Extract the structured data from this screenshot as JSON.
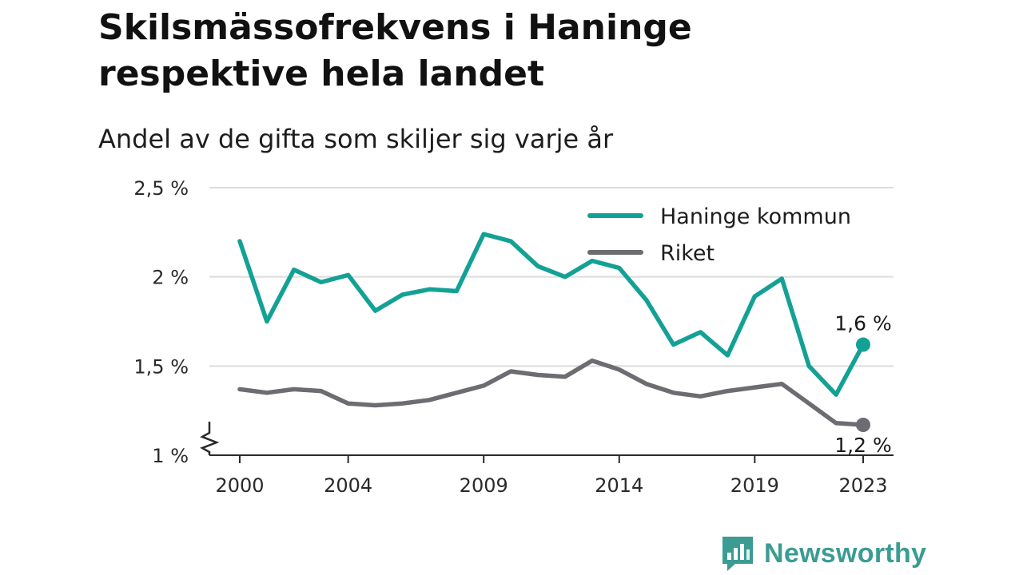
{
  "header": {
    "title": "Skilsmässofrekvens i Haninge respektive hela landet",
    "subtitle": "Andel av de gifta som skiljer sig varje år"
  },
  "brand": {
    "name": "Newsworthy",
    "color": "#3a9c92",
    "icon": "bar-chart-speech-bubble-icon"
  },
  "chart_data": {
    "type": "line",
    "x": [
      2000,
      2001,
      2002,
      2003,
      2004,
      2005,
      2006,
      2007,
      2008,
      2009,
      2010,
      2011,
      2012,
      2013,
      2014,
      2015,
      2016,
      2017,
      2018,
      2019,
      2020,
      2021,
      2022,
      2023
    ],
    "x_ticks": [
      2000,
      2004,
      2009,
      2014,
      2019,
      2023
    ],
    "x_tick_labels": [
      "2000",
      "2004",
      "2009",
      "2014",
      "2019",
      "2023"
    ],
    "y_ticks": [
      1,
      1.5,
      2,
      2.5
    ],
    "y_tick_labels": [
      "1 %",
      "1,5 %",
      "2 %",
      "2,5 %"
    ],
    "ylim": [
      1,
      2.5
    ],
    "y_axis_break": true,
    "grid": true,
    "legend_position": "top-right",
    "series": [
      {
        "name": "Haninge kommun",
        "color": "#14a195",
        "values": [
          2.2,
          1.75,
          2.04,
          1.97,
          2.01,
          1.81,
          1.9,
          1.93,
          1.92,
          2.24,
          2.2,
          2.06,
          2.0,
          2.09,
          2.05,
          1.87,
          1.62,
          1.69,
          1.56,
          1.89,
          1.99,
          1.5,
          1.34,
          1.62
        ],
        "end_label": "1,6 %"
      },
      {
        "name": "Riket",
        "color": "#6c6c72",
        "values": [
          1.37,
          1.35,
          1.37,
          1.36,
          1.29,
          1.28,
          1.29,
          1.31,
          1.35,
          1.39,
          1.47,
          1.45,
          1.44,
          1.53,
          1.48,
          1.4,
          1.35,
          1.33,
          1.36,
          1.38,
          1.4,
          1.29,
          1.18,
          1.17
        ],
        "end_label": "1,2 %"
      }
    ]
  }
}
